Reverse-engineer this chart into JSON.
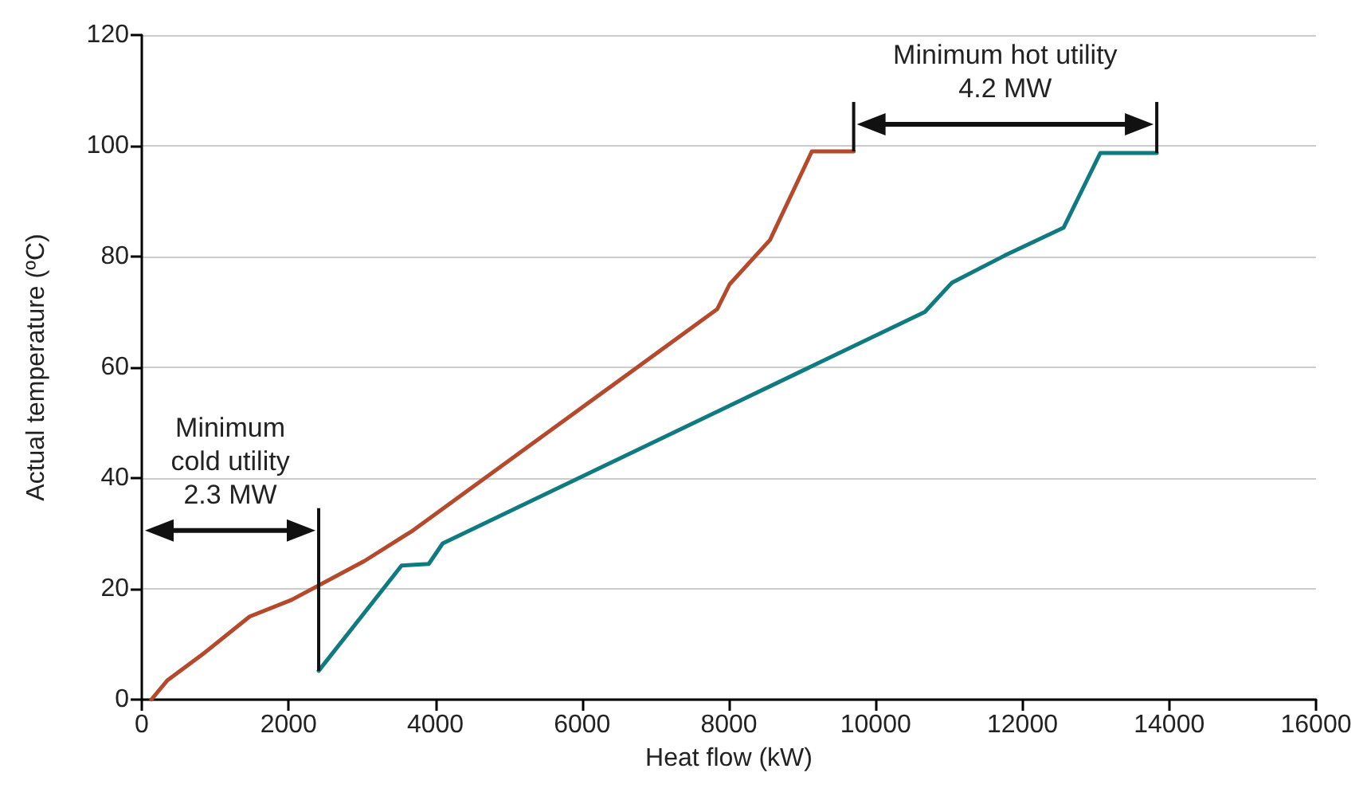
{
  "chart_data": {
    "type": "line",
    "xlabel": "Heat flow (kW)",
    "ylabel": "Actual temperature (ºC)",
    "xlim": [
      0,
      16000
    ],
    "xticks": [
      0,
      2000,
      4000,
      6000,
      8000,
      10000,
      12000,
      14000,
      16000
    ],
    "ylim": [
      0,
      120
    ],
    "yticks": [
      0,
      20,
      40,
      60,
      80,
      100,
      120
    ],
    "grid": "y",
    "marker": "none",
    "line_style": "solid",
    "series": [
      {
        "color": "#b5492c",
        "x": [
          130,
          350,
          840,
          1470,
          2040,
          3030,
          3690,
          7840,
          8010,
          8560,
          9130,
          9700
        ],
        "values": [
          0,
          3.5,
          8.3,
          15,
          18,
          25,
          30.5,
          70.5,
          75,
          83,
          99,
          99
        ]
      },
      {
        "color": "#0f7b80",
        "x": [
          2410,
          3540,
          3910,
          4100,
          10670,
          11040,
          11760,
          12560,
          13060,
          13830
        ],
        "values": [
          5.2,
          24.2,
          24.5,
          28.2,
          70,
          75.3,
          80.2,
          85.2,
          98.7,
          98.7
        ]
      }
    ],
    "annotations": [
      "Minimum\ncold utility\n2.3 MW",
      "Minimum hot utility\n4.2 MW"
    ]
  }
}
